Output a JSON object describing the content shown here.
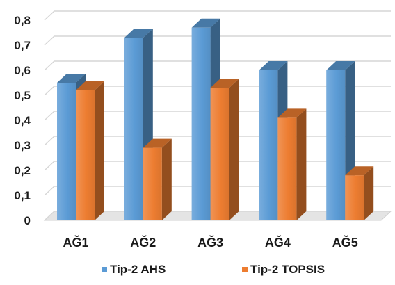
{
  "chart_data": {
    "type": "bar",
    "style": "3d-clustered-column",
    "categories": [
      "AĞ1",
      "AĞ2",
      "AĞ3",
      "AĞ4",
      "AĞ5"
    ],
    "series": [
      {
        "name": "Tip-2 AHS",
        "values": [
          0.55,
          0.73,
          0.77,
          0.6,
          0.6
        ],
        "color": "#5B9BD5"
      },
      {
        "name": "Tip-2 TOPSIS",
        "values": [
          0.52,
          0.29,
          0.53,
          0.41,
          0.18
        ],
        "color": "#ED7D31"
      }
    ],
    "yticks": [
      "0",
      "0,1",
      "0,2",
      "0,3",
      "0,4",
      "0,5",
      "0,6",
      "0,7",
      "0,8"
    ],
    "ylim": [
      0,
      0.8
    ],
    "grid": true,
    "legend_position": "bottom"
  }
}
